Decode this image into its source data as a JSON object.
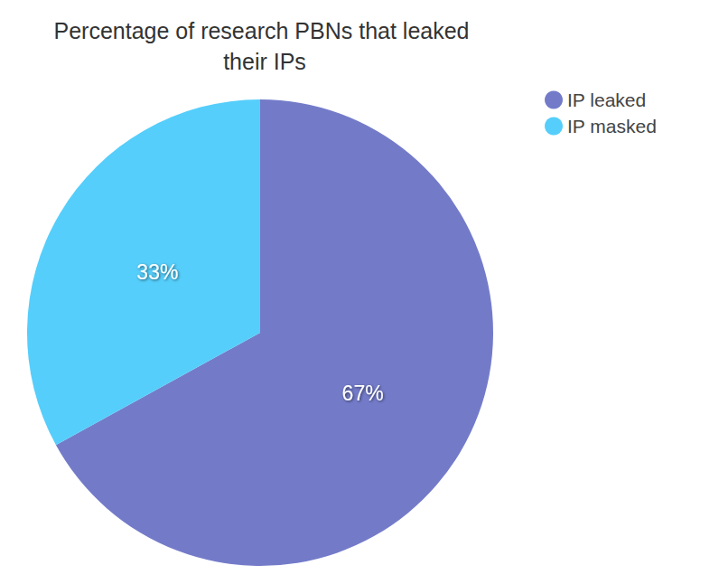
{
  "chart_data": {
    "type": "pie",
    "title": "Percentage of research PBNs that leaked their IPs",
    "categories": [
      "IP leaked",
      "IP masked"
    ],
    "values": [
      67,
      33
    ],
    "value_labels": [
      "67%",
      "33%"
    ],
    "colors": [
      "#737bc9",
      "#55cefb"
    ],
    "data_labels": true,
    "legend": "top-right"
  }
}
